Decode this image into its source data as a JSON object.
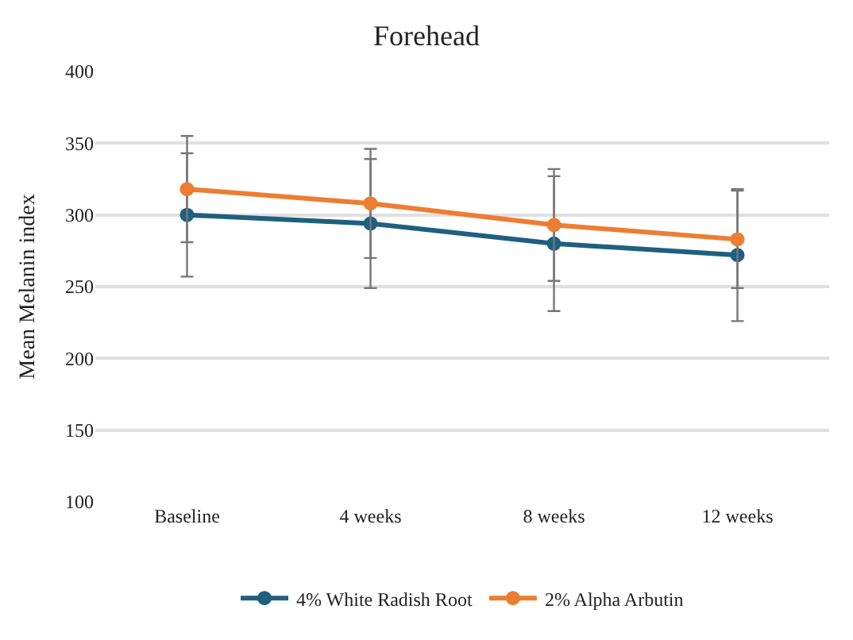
{
  "chart_data": {
    "type": "line",
    "title": "Forehead",
    "ylabel": "Mean Melanin index",
    "categories": [
      "Baseline",
      "4 weeks",
      "8 weeks",
      "12 weeks"
    ],
    "series": [
      {
        "name": "4% White Radish Root",
        "color": "#1f5f7f",
        "values": [
          300,
          294,
          280,
          272
        ],
        "errors": [
          43,
          45,
          47,
          46
        ]
      },
      {
        "name": "2% Alpha Arbutin",
        "color": "#ed7d31",
        "values": [
          318,
          308,
          293,
          283
        ],
        "errors": [
          37,
          38,
          39,
          34
        ]
      }
    ],
    "ylim": [
      100,
      400
    ],
    "yticks": [
      100,
      150,
      200,
      250,
      300,
      350,
      400
    ],
    "grid": "y",
    "legend": "bottom",
    "marker": "circle",
    "line_style": "solid"
  }
}
